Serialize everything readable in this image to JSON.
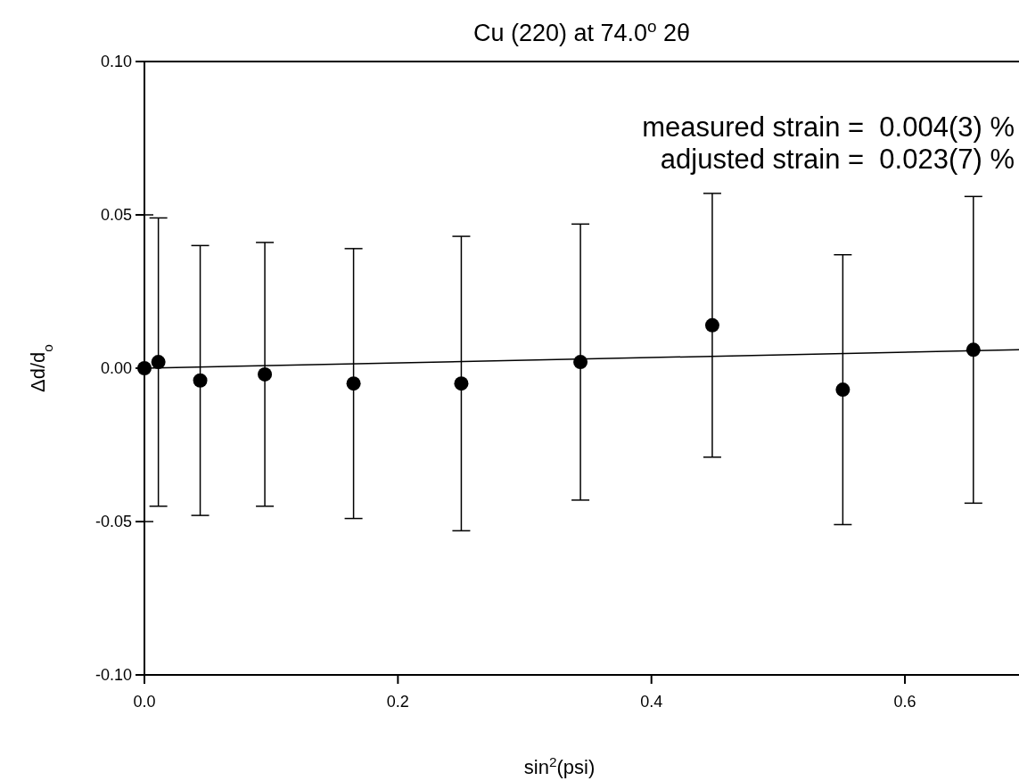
{
  "chart_data": {
    "type": "scatter",
    "title": "Cu (220) at 74.0$^{o}$ 2θ",
    "xlabel": "sin$^{2}$(psi)",
    "ylabel": "Δd/d$_{o}$",
    "annotations": [
      "measured strain =  0.004(3) %",
      "adjusted strain =  0.023(7) %"
    ],
    "xlim": [
      0,
      0.69
    ],
    "xticks": [
      {
        "value": 0,
        "label": "0.0"
      },
      0.2,
      0.4,
      0.6
    ],
    "ylim": [
      -0.1,
      0.1
    ],
    "yticks": [
      {
        "value": -0.1,
        "label": "-0.10"
      },
      -0.05,
      {
        "value": 0,
        "label": "0.00"
      },
      0.05,
      {
        "value": 0.1,
        "label": "0.10"
      }
    ],
    "grid": false,
    "series": [
      {
        "marker": "circle",
        "color": "#000000",
        "x": [
          0,
          0.011,
          0.044,
          0.095,
          0.165,
          0.25,
          0.344,
          0.448,
          0.551,
          0.654
        ],
        "values": [
          0,
          0.002,
          -0.004,
          -0.002,
          -0.005,
          -0.005,
          0.002,
          0.014,
          -0.007,
          0.006
        ],
        "errors": [
          [
            -0.05,
            0.05
          ],
          [
            -0.045,
            0.049
          ],
          [
            -0.048,
            0.04
          ],
          [
            -0.045,
            0.041
          ],
          [
            -0.049,
            0.039
          ],
          [
            -0.053,
            0.043
          ],
          [
            -0.043,
            0.047
          ],
          [
            -0.029,
            0.057
          ],
          [
            -0.051,
            0.037
          ],
          [
            -0.044,
            0.056
          ]
        ]
      },
      {
        "type": "line",
        "color": "#000000",
        "x": [
          0,
          0.69
        ],
        "values": [
          0,
          0.006
        ],
        "line_style": "solid",
        "marker": "none"
      }
    ]
  }
}
